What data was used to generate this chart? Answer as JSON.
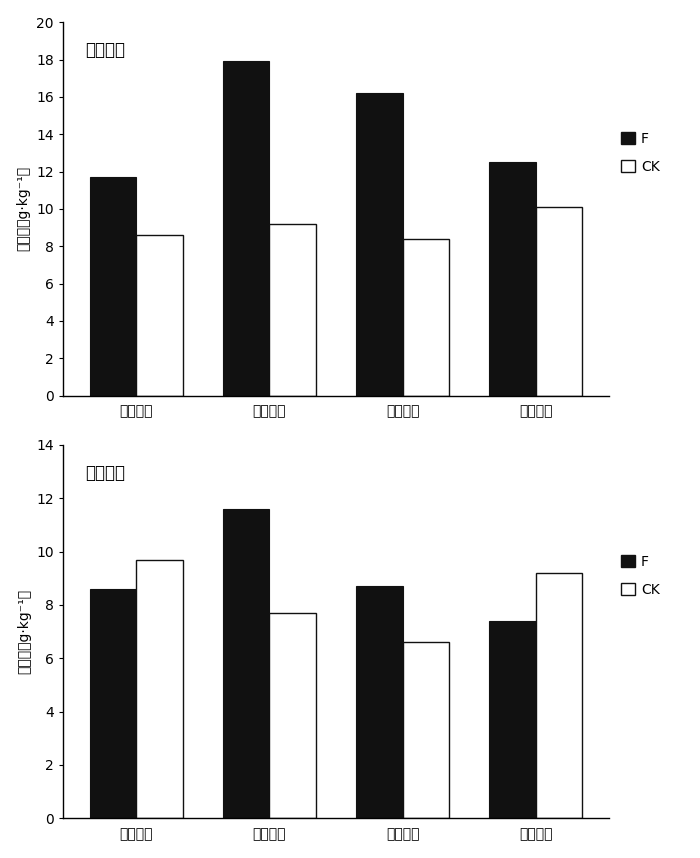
{
  "top_chart": {
    "title": "地上部分",
    "categories": [
      "重度胁迫",
      "中度胁迫",
      "轻度胁迫",
      "正常条件"
    ],
    "F_values": [
      11.7,
      17.9,
      16.2,
      12.5
    ],
    "CK_values": [
      8.6,
      9.2,
      8.4,
      10.1
    ],
    "ylim": [
      0,
      20
    ],
    "yticks": [
      0,
      2,
      4,
      6,
      8,
      10,
      12,
      14,
      16,
      18,
      20
    ],
    "ylabel": "氮含量（g·kg⁻¹）"
  },
  "bottom_chart": {
    "title": "地下部分",
    "categories": [
      "重度胁迫",
      "中度胁迫",
      "轻度胁迫",
      "正常条件"
    ],
    "F_values": [
      8.6,
      11.6,
      8.7,
      7.4
    ],
    "CK_values": [
      9.7,
      7.7,
      6.6,
      9.2
    ],
    "ylim": [
      0,
      14
    ],
    "yticks": [
      0,
      2,
      4,
      6,
      8,
      10,
      12,
      14
    ],
    "ylabel": "氮含量（g·kg⁻¹）"
  },
  "bar_width": 0.35,
  "F_color": "#111111",
  "CK_color": "#ffffff",
  "CK_edgecolor": "#111111",
  "legend_F_label": "F",
  "legend_CK_label": "CK",
  "font_size_title": 12,
  "font_size_tick": 10,
  "font_size_label": 10,
  "font_size_legend": 10
}
